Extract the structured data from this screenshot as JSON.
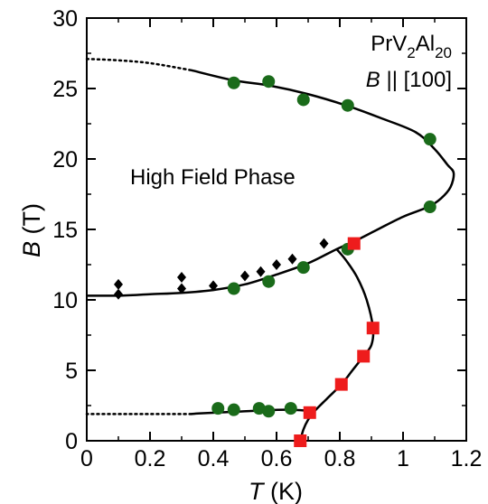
{
  "chart_data": {
    "type": "scatter",
    "xlabel": {
      "symbol": "T",
      "unit": " (K)"
    },
    "ylabel": {
      "symbol": "B",
      "unit": " (T)"
    },
    "xlim": [
      0,
      1.2
    ],
    "ylim": [
      0,
      30
    ],
    "xticks": [
      0,
      0.2,
      0.4,
      0.6,
      0.8,
      1,
      1.2
    ],
    "xtick_labels": [
      "0",
      "0.2",
      "0.4",
      "0.6",
      "0.8",
      "1",
      "1.2"
    ],
    "yticks": [
      0,
      5,
      10,
      15,
      20,
      25,
      30
    ],
    "ytick_labels": [
      "0",
      "5",
      "10",
      "15",
      "20",
      "25",
      "30"
    ],
    "grid": false,
    "annotations": {
      "compound": {
        "main": "PrV",
        "sub1": "2",
        "mid": "Al",
        "sub2": "20"
      },
      "field_dir": {
        "symbol": "B",
        "rest": " || [100]"
      },
      "phase": "High Field Phase"
    },
    "series": [
      {
        "marker": "circle",
        "color": "#1a6b1a",
        "points": [
          [
            0.465,
            25.4
          ],
          [
            0.575,
            25.5
          ],
          [
            0.685,
            24.2
          ],
          [
            0.825,
            23.8
          ],
          [
            1.085,
            21.4
          ],
          [
            1.085,
            16.6
          ],
          [
            0.825,
            13.6
          ],
          [
            0.685,
            12.3
          ],
          [
            0.575,
            11.3
          ],
          [
            0.465,
            10.8
          ],
          [
            0.415,
            2.3
          ],
          [
            0.465,
            2.2
          ],
          [
            0.545,
            2.3
          ],
          [
            0.575,
            2.1
          ],
          [
            0.645,
            2.3
          ]
        ]
      },
      {
        "marker": "diamond",
        "color": "#000000",
        "points": [
          [
            0.1,
            11.1
          ],
          [
            0.1,
            10.4
          ],
          [
            0.3,
            11.6
          ],
          [
            0.3,
            10.8
          ],
          [
            0.4,
            11.0
          ],
          [
            0.5,
            11.7
          ],
          [
            0.55,
            12.0
          ],
          [
            0.6,
            12.5
          ],
          [
            0.65,
            12.9
          ],
          [
            0.75,
            14.0
          ]
        ]
      },
      {
        "marker": "square",
        "color": "#ee1c1c",
        "points": [
          [
            0.675,
            0.0
          ],
          [
            0.705,
            2.0
          ],
          [
            0.805,
            4.0
          ],
          [
            0.875,
            6.0
          ],
          [
            0.905,
            8.0
          ],
          [
            0.845,
            14.0
          ]
        ]
      }
    ],
    "curves": [
      {
        "style": "dotted",
        "points": [
          [
            0,
            27.1
          ],
          [
            0.1,
            27.0
          ],
          [
            0.2,
            26.8
          ],
          [
            0.33,
            26.3
          ]
        ]
      },
      {
        "style": "solid",
        "points": [
          [
            0.33,
            26.3
          ],
          [
            0.46,
            25.6
          ],
          [
            0.58,
            25.2
          ],
          [
            0.7,
            24.6
          ],
          [
            0.82,
            23.8
          ],
          [
            0.93,
            22.9
          ],
          [
            1.04,
            21.9
          ],
          [
            1.1,
            20.7
          ],
          [
            1.14,
            19.6
          ],
          [
            1.16,
            19.0
          ],
          [
            1.15,
            18.0
          ],
          [
            1.12,
            17.2
          ],
          [
            1.08,
            16.6
          ],
          [
            1.0,
            15.9
          ],
          [
            0.92,
            15.0
          ],
          [
            0.85,
            14.2
          ],
          [
            0.79,
            13.6
          ],
          [
            0.7,
            12.6
          ],
          [
            0.6,
            11.8
          ],
          [
            0.5,
            11.1
          ],
          [
            0.4,
            10.7
          ],
          [
            0.3,
            10.5
          ],
          [
            0.2,
            10.4
          ],
          [
            0.1,
            10.3
          ],
          [
            0.0,
            10.3
          ]
        ]
      },
      {
        "style": "solid",
        "points": [
          [
            0.79,
            13.6
          ],
          [
            0.82,
            12.8
          ],
          [
            0.855,
            11.6
          ],
          [
            0.885,
            10.0
          ],
          [
            0.905,
            8.0
          ],
          [
            0.9,
            6.8
          ],
          [
            0.875,
            6.0
          ],
          [
            0.84,
            5.0
          ],
          [
            0.805,
            4.0
          ],
          [
            0.76,
            3.0
          ],
          [
            0.72,
            2.1
          ],
          [
            0.7,
            1.5
          ],
          [
            0.685,
            0.8
          ],
          [
            0.675,
            0.0
          ]
        ]
      },
      {
        "style": "solid",
        "points": [
          [
            0.72,
            2.1
          ],
          [
            0.64,
            2.2
          ],
          [
            0.55,
            2.15
          ],
          [
            0.46,
            2.05
          ],
          [
            0.36,
            1.95
          ],
          [
            0.33,
            1.9
          ]
        ]
      },
      {
        "style": "dotted",
        "points": [
          [
            0.33,
            1.9
          ],
          [
            0.2,
            1.9
          ],
          [
            0.1,
            1.9
          ],
          [
            0.0,
            1.9
          ]
        ]
      }
    ]
  }
}
